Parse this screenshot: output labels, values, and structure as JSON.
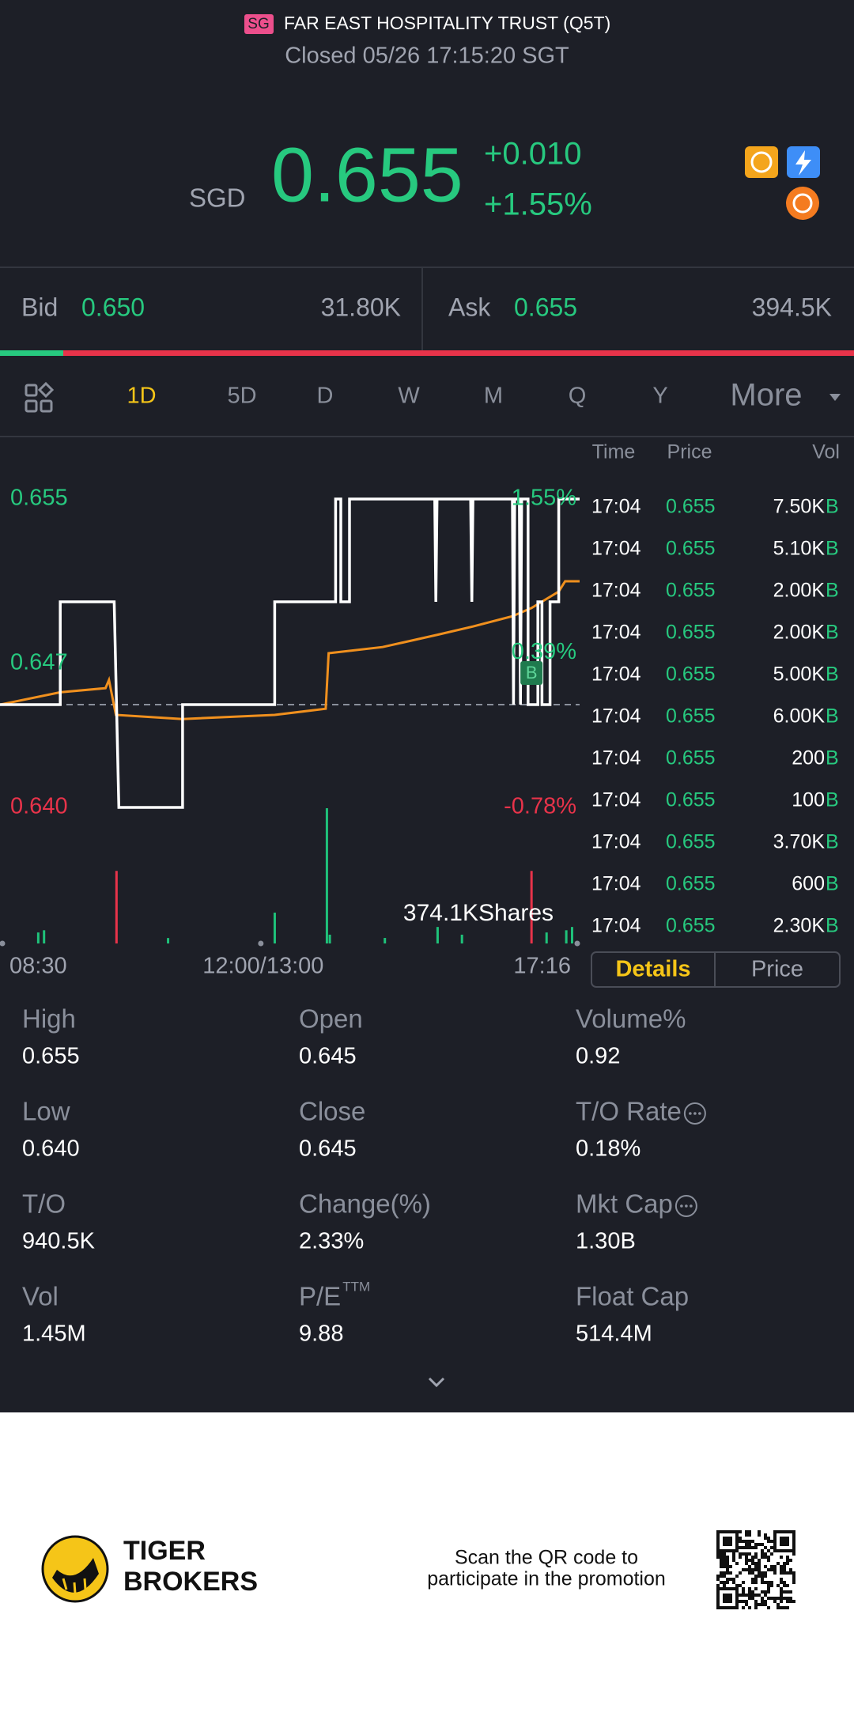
{
  "header": {
    "badge": "SG",
    "title": "FAR EAST HOSPITALITY TRUST (Q5T)",
    "status": "Closed 05/26 17:15:20 SGT"
  },
  "quote": {
    "currency": "SGD",
    "price": "0.655",
    "change": "+0.010",
    "change_pct": "+1.55%"
  },
  "bid": {
    "label": "Bid",
    "price": "0.650",
    "size": "31.80K"
  },
  "ask": {
    "label": "Ask",
    "price": "0.655",
    "size": "394.5K"
  },
  "tabs": [
    "1D",
    "5D",
    "D",
    "W",
    "M",
    "Q",
    "Y",
    "More"
  ],
  "active_tab": 0,
  "chart_data": {
    "type": "line",
    "xlim": [
      0,
      100
    ],
    "xticks": [
      {
        "value": 0,
        "label": "08:30"
      },
      {
        "value": 45,
        "label": "12:00/13:00"
      },
      {
        "value": 100,
        "label": "17:16"
      }
    ],
    "ylim": [
      0.64,
      0.655
    ],
    "yticks": [
      0.655,
      0.647,
      {
        "value": 0.64,
        "label": "0.640"
      }
    ],
    "y2lim": [
      -0.78,
      1.55
    ],
    "y2ticks": [
      {
        "value": 1.55,
        "label": "1.55%"
      },
      {
        "value": 0.39,
        "label": "0.39%"
      },
      {
        "value": -0.78,
        "label": "-0.78%"
      }
    ],
    "reference_line": 0.645,
    "series": [
      {
        "color": "#ffffff",
        "x": [
          0,
          10.4,
          10.4,
          19.7,
          20.5,
          31.5,
          31.5,
          47.4,
          47.4,
          57.9,
          57.9,
          58.8,
          58.8,
          60.3,
          60.3,
          75,
          75.2,
          75.4,
          81.2,
          81.4,
          81.6,
          88.4,
          88.6,
          88.8,
          89.6,
          89.8,
          90,
          91.1,
          91.1,
          92.8,
          92.8,
          93.5,
          93.5,
          94.9,
          94.9,
          96.4,
          96.4,
          100
        ],
        "values": [
          0.645,
          0.645,
          0.65,
          0.65,
          0.64,
          0.64,
          0.645,
          0.645,
          0.65,
          0.65,
          0.655,
          0.655,
          0.65,
          0.65,
          0.655,
          0.655,
          0.65,
          0.655,
          0.655,
          0.65,
          0.655,
          0.655,
          0.645,
          0.655,
          0.655,
          0.645,
          0.655,
          0.655,
          0.645,
          0.645,
          0.65,
          0.65,
          0.645,
          0.645,
          0.65,
          0.65,
          0.655,
          0.655
        ]
      },
      {
        "color": "#f0901e",
        "x": [
          0,
          10.4,
          18.2,
          18.8,
          20,
          31.5,
          47.4,
          56.2,
          56.7,
          66,
          75.5,
          81.6,
          88.4,
          91.7,
          96.4,
          97.5,
          100
        ],
        "values": [
          0.645,
          0.6456,
          0.6458,
          0.6462,
          0.6445,
          0.6443,
          0.6445,
          0.6448,
          0.6475,
          0.6478,
          0.6484,
          0.6488,
          0.6493,
          0.6497,
          0.6505,
          0.651,
          0.651
        ]
      }
    ],
    "volume": {
      "label": "374.1KShares",
      "ylim": [
        0,
        374100
      ],
      "x": [
        6.6,
        7.6,
        20.1,
        29,
        47.4,
        56.4,
        56.9,
        66.4,
        75.5,
        79.7,
        91.7,
        94.3,
        97.7,
        98.7
      ],
      "values": [
        30400,
        36500,
        200700,
        15000,
        85200,
        374100,
        24300,
        15200,
        45600,
        24300,
        200700,
        30400,
        36500,
        45600
      ],
      "colors": [
        "#1fc27a",
        "#1fc27a",
        "#e8334a",
        "#1fc27a",
        "#1fc27a",
        "#1fc27a",
        "#1fc27a",
        "#1fc27a",
        "#1fc27a",
        "#1fc27a",
        "#e8334a",
        "#1fc27a",
        "#1fc27a",
        "#1fc27a"
      ]
    },
    "buy_marker": {
      "x": 91.7,
      "label": "B"
    }
  },
  "trades": {
    "headers": [
      "Time",
      "Price",
      "Vol"
    ],
    "rows": [
      [
        "17:04",
        "0.655",
        "7.50K",
        "B"
      ],
      [
        "17:04",
        "0.655",
        "5.10K",
        "B"
      ],
      [
        "17:04",
        "0.655",
        "2.00K",
        "B"
      ],
      [
        "17:04",
        "0.655",
        "2.00K",
        "B"
      ],
      [
        "17:04",
        "0.655",
        "5.00K",
        "B"
      ],
      [
        "17:04",
        "0.655",
        "6.00K",
        "B"
      ],
      [
        "17:04",
        "0.655",
        "200",
        "B"
      ],
      [
        "17:04",
        "0.655",
        "100",
        "B"
      ],
      [
        "17:04",
        "0.655",
        "3.70K",
        "B"
      ],
      [
        "17:04",
        "0.655",
        "600",
        "B"
      ],
      [
        "17:04",
        "0.655",
        "2.30K",
        "B"
      ]
    ]
  },
  "detail_tabs": [
    "Details",
    "Price"
  ],
  "stats": [
    {
      "label": "High",
      "value": "0.655"
    },
    {
      "label": "Open",
      "value": "0.645"
    },
    {
      "label": "Volume%",
      "value": "0.92"
    },
    {
      "label": "Low",
      "value": "0.640"
    },
    {
      "label": "Close",
      "value": "0.645"
    },
    {
      "label": "T/O Rate",
      "value": "0.18%"
    },
    {
      "label": "T/O",
      "value": "940.5K"
    },
    {
      "label": "Change(%)",
      "value": "2.33%"
    },
    {
      "label": "Mkt Cap",
      "value": "1.30B"
    },
    {
      "label": "Vol",
      "value": "1.45M"
    },
    {
      "label": "P/E",
      "sup": "TTM",
      "value": "9.88"
    },
    {
      "label": "Float Cap",
      "value": "514.4M"
    }
  ],
  "footer": {
    "brand": [
      "TIGER",
      "BROKERS"
    ],
    "promo": [
      "Scan the QR code to",
      "participate in the promotion"
    ]
  }
}
